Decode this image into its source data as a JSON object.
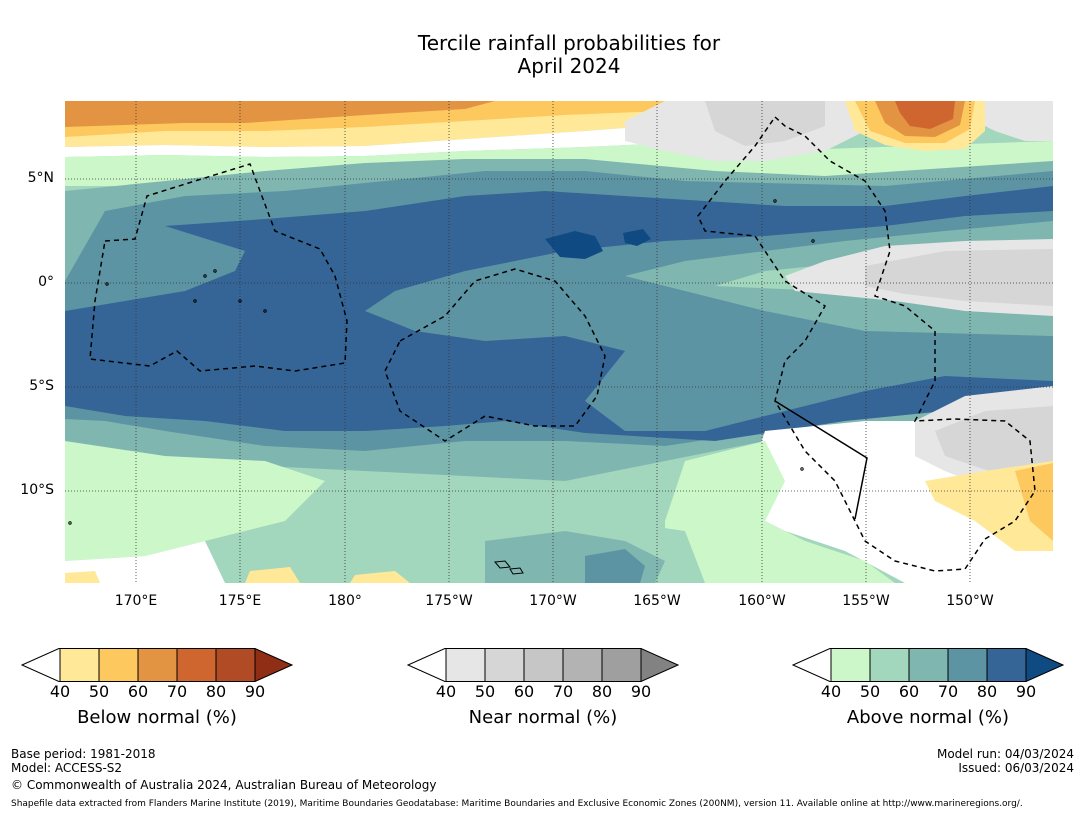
{
  "title": {
    "line1": "Tercile rainfall probabilities for",
    "line2": "April 2024"
  },
  "map": {
    "latitude_labels": [
      "5°N",
      "0°",
      "5°S",
      "10°S"
    ],
    "longitude_labels": [
      "170°E",
      "175°E",
      "180°",
      "175°W",
      "170°W",
      "165°W",
      "160°W",
      "155°W",
      "150°W"
    ],
    "colors": {
      "below": [
        "#ffe999",
        "#fdc95f",
        "#e29442",
        "#cf6630",
        "#b04b26",
        "#8f2d15"
      ],
      "near": [
        "#e6e6e6",
        "#d6d6d6",
        "#c6c6c6",
        "#b3b3b3",
        "#9f9f9f",
        "#828282"
      ],
      "above": [
        "#ccf7c8",
        "#a2d6bd",
        "#80b6b0",
        "#5d94a3",
        "#356596",
        "#0f4a82"
      ]
    }
  },
  "legends": [
    {
      "title": "Below normal (%)",
      "ticks": [
        "40",
        "50",
        "60",
        "70",
        "80",
        "90"
      ],
      "colors": [
        "#ffe999",
        "#fdc95f",
        "#e29442",
        "#cf6630",
        "#b04b26",
        "#8f2d15"
      ]
    },
    {
      "title": "Near normal (%)",
      "ticks": [
        "40",
        "50",
        "60",
        "70",
        "80",
        "90"
      ],
      "colors": [
        "#e6e6e6",
        "#d6d6d6",
        "#c6c6c6",
        "#b3b3b3",
        "#9f9f9f",
        "#828282"
      ]
    },
    {
      "title": "Above normal (%)",
      "ticks": [
        "40",
        "50",
        "60",
        "70",
        "80",
        "90"
      ],
      "colors": [
        "#ccf7c8",
        "#a2d6bd",
        "#80b6b0",
        "#5d94a3",
        "#356596",
        "#0f4a82"
      ]
    }
  ],
  "footer": {
    "base_period": "Base period: 1981-2018",
    "model": "Model: ACCESS-S2",
    "copyright": "© Commonwealth of Australia 2024, Australian Bureau of Meteorology",
    "model_run": "Model run: 04/03/2024",
    "issued": "Issued: 06/03/2024",
    "shapefile": "Shapefile data extracted from Flanders Marine Institute (2019), Maritime Boundaries Geodatabase: Maritime Boundaries and Exclusive Economic Zones (200NM), version 11. Available online at http://www.marineregions.org/."
  }
}
